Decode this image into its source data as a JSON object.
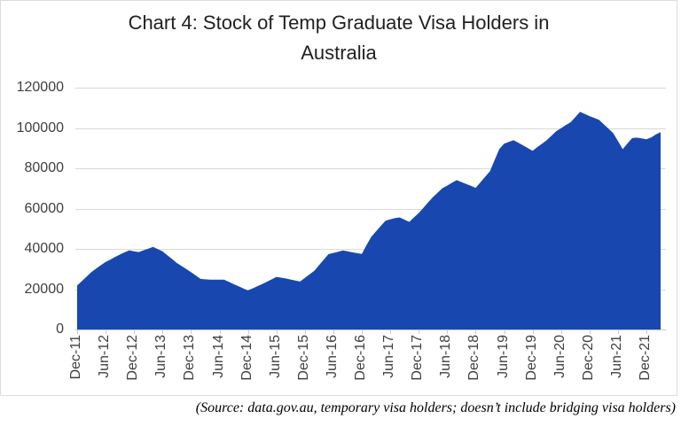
{
  "title": {
    "line1": "Chart 4: Stock of Temp Graduate Visa Holders in",
    "line2": "Australia"
  },
  "source_note": "(Source: data.gov.au, temporary visa holders; doesn’t include bridging visa holders)",
  "colors": {
    "area_fill": "#1847B0",
    "gridline": "#d9d9d9",
    "axis_line": "#c8c8c8",
    "title_text": "#212121",
    "tick_label_text": "#3f3f3f",
    "source_text": "#000000",
    "background": "#ffffff",
    "panel_border": "#dcdcdc"
  },
  "chart_data": {
    "type": "area",
    "title": "Chart 4: Stock of Temp Graduate Visa Holders in Australia",
    "series_name": "Stock of Temp Graduate Visa Holders in Australia",
    "frequency": "monthly",
    "x_start_label": "Dec-11",
    "x_tick_step_months": 6,
    "x_tick_labels": [
      "Dec-11",
      "Jun-12",
      "Dec-12",
      "Jun-13",
      "Dec-13",
      "Jun-14",
      "Dec-14",
      "Jun-15",
      "Dec-15",
      "Jun-16",
      "Dec-16",
      "Jun-17",
      "Dec-17",
      "Jun-18",
      "Dec-18",
      "Jun-19",
      "Dec-19",
      "Jun-20",
      "Dec-20",
      "Jun-21",
      "Dec-21"
    ],
    "y_ticks": [
      0,
      20000,
      40000,
      60000,
      80000,
      100000,
      120000
    ],
    "ylim": [
      0,
      120000
    ],
    "grid": "horizontal",
    "legend": "none",
    "values": [
      21800,
      24000,
      26300,
      28500,
      30200,
      31900,
      33500,
      34700,
      36000,
      37200,
      38300,
      39300,
      38800,
      38400,
      39300,
      40100,
      41000,
      39900,
      38800,
      36900,
      35000,
      33000,
      31500,
      30000,
      28500,
      26800,
      25100,
      24900,
      24700,
      24700,
      24700,
      24700,
      23600,
      22500,
      21500,
      20400,
      19400,
      20400,
      21500,
      22500,
      23700,
      24900,
      26100,
      25700,
      25300,
      24800,
      24300,
      23800,
      25600,
      27400,
      29100,
      31900,
      34700,
      37400,
      38000,
      38600,
      39200,
      38800,
      38300,
      37900,
      37500,
      41800,
      46000,
      48700,
      51400,
      54000,
      54700,
      55300,
      55600,
      54500,
      53400,
      55600,
      57800,
      60400,
      63100,
      65700,
      67900,
      70100,
      71400,
      72800,
      74100,
      73200,
      72200,
      71300,
      70300,
      73000,
      75800,
      78500,
      84100,
      89600,
      92200,
      93100,
      94000,
      92700,
      91400,
      90000,
      88700,
      90500,
      92200,
      94000,
      96200,
      98400,
      99900,
      101400,
      102800,
      105400,
      108000,
      107000,
      105900,
      105000,
      104100,
      101900,
      99700,
      97500,
      93500,
      89500,
      92300,
      95000,
      95200,
      94800,
      94400,
      95300,
      96800,
      97900
    ]
  }
}
